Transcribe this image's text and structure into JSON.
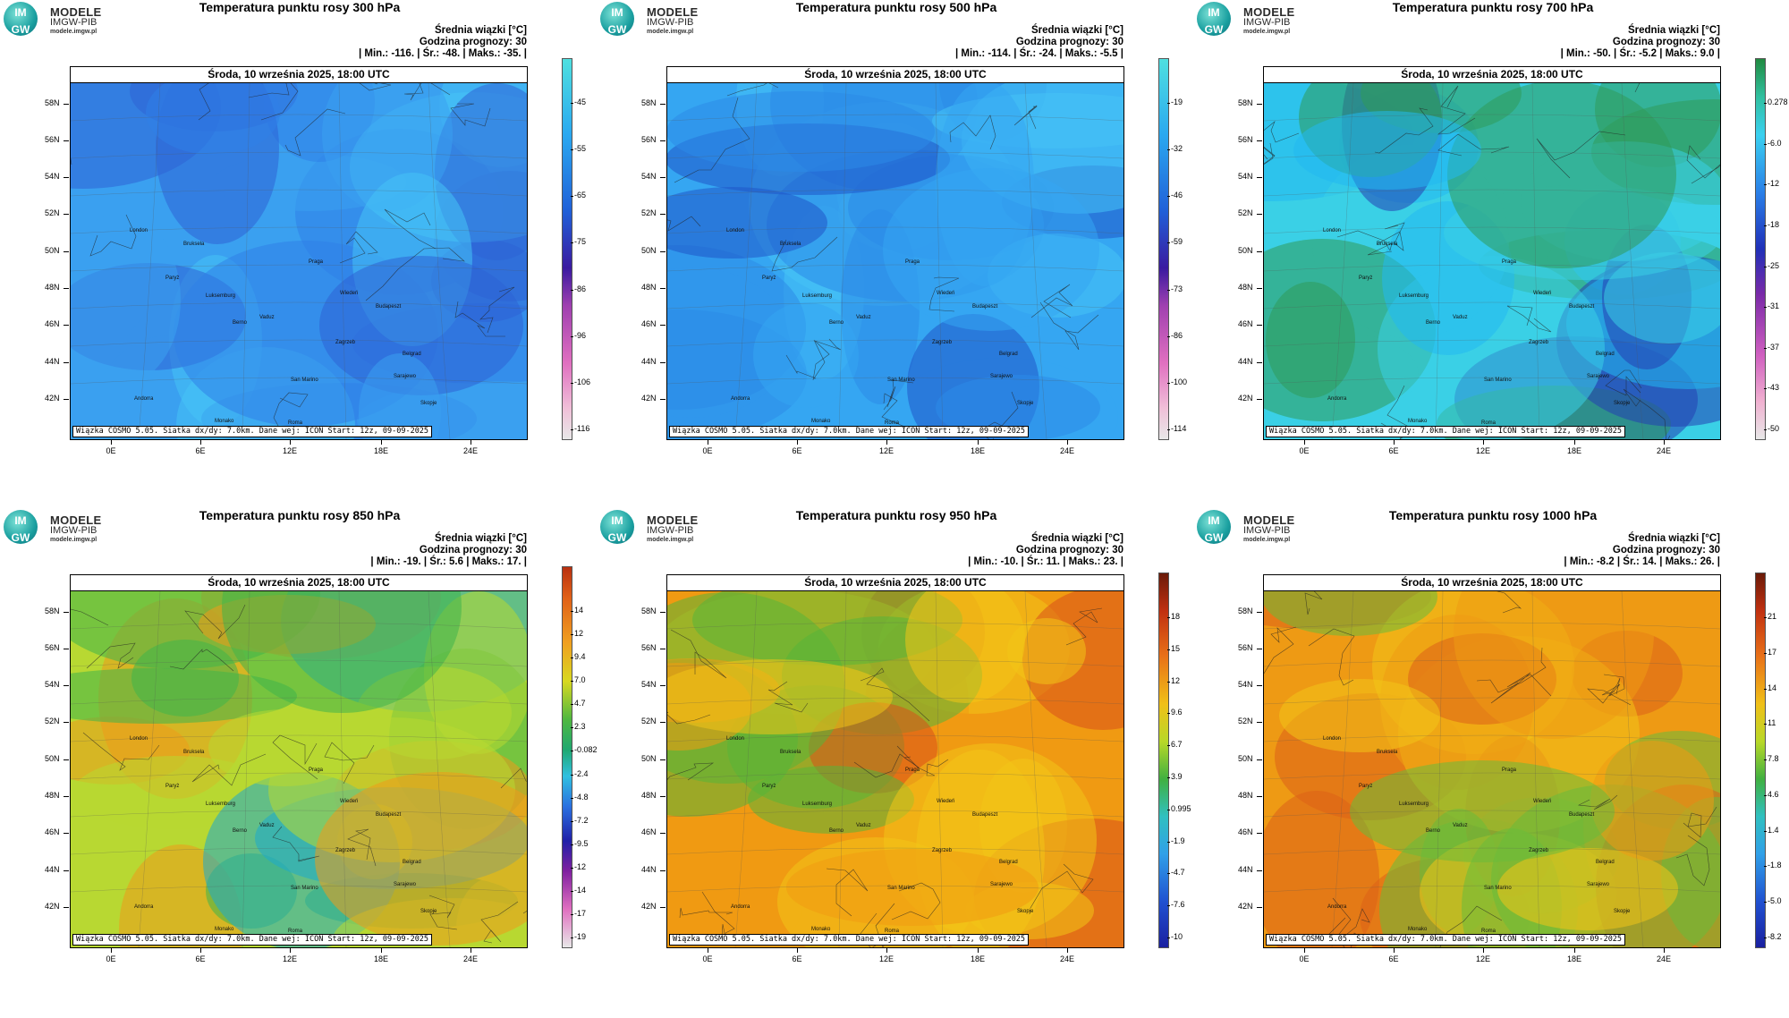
{
  "logo": {
    "circle_text_1": "IM",
    "circle_text_2": "GW",
    "line1": "MODELE",
    "line2": "IMGW-PIB",
    "line3": "modele.imgw.pl"
  },
  "date_label": "Środa, 10 września 2025, 18:00 UTC",
  "info_line1": "Średnia wiązki [°C]",
  "info_line2": "Godzina prognozy: 30",
  "footer": "Wiązka COSMO 5.05. Siatka dx/dy: 7.0km. Dane wej: ICON Start: 12z, 09-09-2025",
  "lat_labels": [
    "58N",
    "56N",
    "54N",
    "52N",
    "50N",
    "48N",
    "46N",
    "44N",
    "42N"
  ],
  "lon_labels": [
    "0E",
    "6E",
    "12E",
    "18E",
    "24E"
  ],
  "cities": [
    "London",
    "Bruksela",
    "Paryż",
    "Luksemburg",
    "Praga",
    "Wiedeń",
    "Budapeszt",
    "Berno",
    "Vaduz",
    "Zagrzeb",
    "Belgrad",
    "San Marino",
    "Sarajewo",
    "Skopje",
    "Andorra",
    "Monako",
    "Roma"
  ],
  "panels": [
    {
      "title": "Temperatura punktu rosy 300 hPa",
      "stats": "| Min.:   -116. | Śr.:    -48. | Maks.:    -35. |",
      "colorbar": [
        "-45",
        "-55",
        "-65",
        "-75",
        "-86",
        "-96",
        "-106",
        "-116"
      ],
      "palette": [
        "#2f7fe8",
        "#3aa0f0",
        "#46c3f5",
        "#2d63d6"
      ]
    },
    {
      "title": "Temperatura punktu rosy 500 hPa",
      "stats": "| Min.:   -114. | Śr.:    -24. | Maks.:    -5.5 |",
      "colorbar": [
        "-19",
        "-32",
        "-46",
        "-59",
        "-73",
        "-86",
        "-100",
        "-114"
      ],
      "palette": [
        "#2b8be8",
        "#35a6f2",
        "#45c2f5",
        "#1f55c8"
      ]
    },
    {
      "title": "Temperatura punktu rosy 700 hPa",
      "stats": "| Min.:    -50. | Śr.:    -5.2 | Maks.:    9.0 |",
      "colorbar": [
        "0.278",
        "-6.0",
        "-12",
        "-18",
        "-25",
        "-31",
        "-37",
        "-43",
        "-50"
      ],
      "palette": [
        "#23b8f0",
        "#3ad0e6",
        "#2f9a5a",
        "#243fb3"
      ]
    },
    {
      "title": "Temperatura punktu rosy 850 hPa",
      "stats": "| Min.:    -19. | Śr.:    5.6 | Maks.:    17. |",
      "colorbar": [
        "14",
        "12",
        "9.4",
        "7.0",
        "4.7",
        "2.3",
        "-0.082",
        "-2.4",
        "-4.8",
        "-7.2",
        "-9.5",
        "-12",
        "-14",
        "-17",
        "-19"
      ],
      "palette": [
        "#3fb54a",
        "#b8d832",
        "#ee9a1a",
        "#1ea9cc"
      ]
    },
    {
      "title": "Temperatura punktu rosy 950 hPa",
      "stats": "| Min.:    -10. | Śr.:    11. | Maks.:    23. |",
      "colorbar": [
        "18",
        "15",
        "12",
        "9.6",
        "6.7",
        "3.9",
        "0.995",
        "-1.9",
        "-4.7",
        "-7.6",
        "-10"
      ],
      "palette": [
        "#f2c418",
        "#f09a12",
        "#d8501a",
        "#58b438"
      ]
    },
    {
      "title": "Temperatura punktu rosy 1000 hPa",
      "stats": "| Min.:    -8.2 | Śr.:    14. | Maks.:    26. |",
      "colorbar": [
        "21",
        "17",
        "14",
        "11",
        "7.8",
        "4.6",
        "1.4",
        "-1.8",
        "-5.0",
        "-8.2"
      ],
      "palette": [
        "#f2c418",
        "#ee9a14",
        "#dc6018",
        "#6abb3a"
      ]
    }
  ]
}
